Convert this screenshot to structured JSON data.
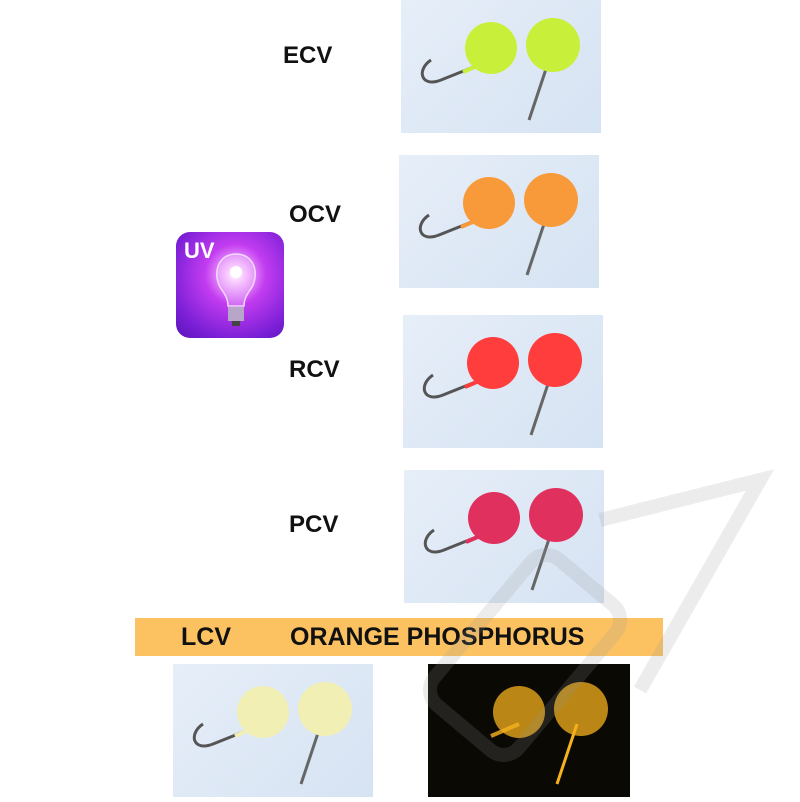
{
  "variants": [
    {
      "code": "ECV",
      "ball_color": "#c8f03a"
    },
    {
      "code": "OCV",
      "ball_color": "#f99a3a"
    },
    {
      "code": "RCV",
      "ball_color": "#ff3d3d"
    },
    {
      "code": "PCV",
      "ball_color": "#e0305e"
    }
  ],
  "uv_badge": {
    "text": "UV",
    "icon": "uv-light-bulb-icon"
  },
  "banner": {
    "left": "LCV",
    "right": "ORANGE PHOSPHORUS",
    "color": "#fcc262"
  },
  "lcv": {
    "ball_color": "#f1efb4",
    "glow_color": "#f6b21c"
  }
}
